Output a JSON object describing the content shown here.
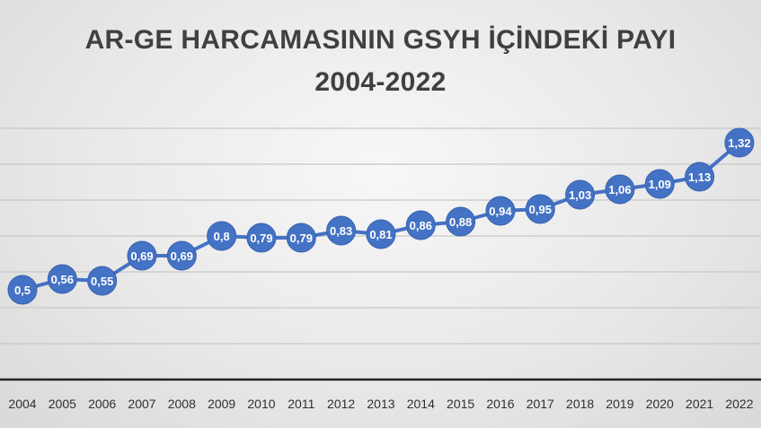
{
  "chart_data": {
    "type": "line",
    "title": "AR-GE HARCAMASININ GSYH İÇİNDEKİ PAYI",
    "subtitle": "2004-2022",
    "xlabel": "",
    "ylabel": "",
    "categories": [
      "2004",
      "2005",
      "2006",
      "2007",
      "2008",
      "2009",
      "2010",
      "2011",
      "2012",
      "2013",
      "2014",
      "2015",
      "2016",
      "2017",
      "2018",
      "2019",
      "2020",
      "2021",
      "2022"
    ],
    "series": [
      {
        "values": [
          0.5,
          0.56,
          0.55,
          0.69,
          0.69,
          0.8,
          0.79,
          0.79,
          0.83,
          0.81,
          0.86,
          0.88,
          0.94,
          0.95,
          1.03,
          1.06,
          1.09,
          1.13,
          1.32
        ],
        "labels": [
          "0,5",
          "0,56",
          "0,55",
          "0,69",
          "0,69",
          "0,8",
          "0,79",
          "0,79",
          "0,83",
          "0,81",
          "0,86",
          "0,88",
          "0,94",
          "0,95",
          "1,03",
          "1,06",
          "1,09",
          "1,13",
          "1,32"
        ]
      }
    ],
    "ylim": [
      0,
      1.4
    ],
    "grid": true,
    "colors": {
      "line": "#4472c4",
      "marker": "#4472c4",
      "grid": "#c8c8c8",
      "axis": "#222222"
    }
  }
}
